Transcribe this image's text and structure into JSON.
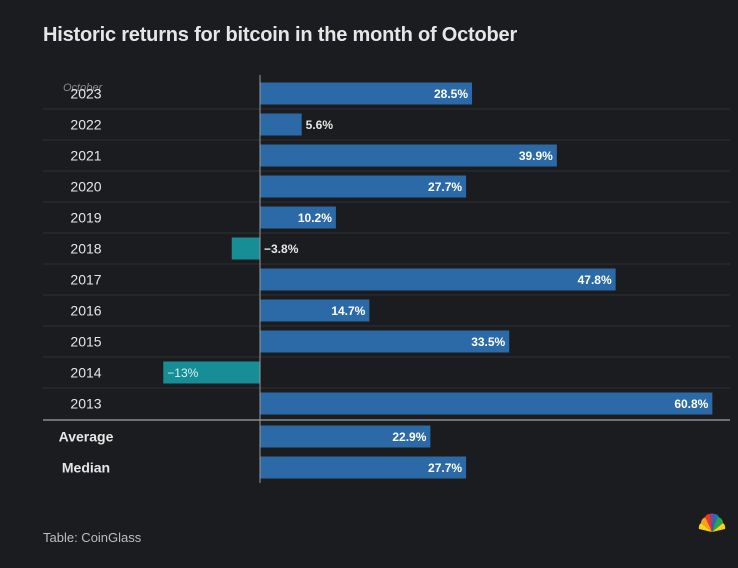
{
  "title": "Historic returns for bitcoin in the month of October",
  "source": "Table: CoinGlass",
  "logo": {
    "name": "nbc-peacock-icon"
  },
  "colors": {
    "positive": "#2b6aa6",
    "negative": "#178e96",
    "background": "#1b1c1f",
    "separator": "#2e2f33",
    "axis": "#9a9a9a",
    "text": "#e6e6e6"
  },
  "chart_data": {
    "type": "bar",
    "orientation": "horizontal",
    "title": "Historic returns for bitcoin in the month of October",
    "row_header": "October",
    "categories": [
      "2023",
      "2022",
      "2021",
      "2020",
      "2019",
      "2018",
      "2017",
      "2016",
      "2015",
      "2014",
      "2013"
    ],
    "values": [
      28.5,
      5.6,
      39.9,
      27.7,
      10.2,
      -3.8,
      47.8,
      14.7,
      33.5,
      -13,
      60.8
    ],
    "labels": [
      "28.5%",
      "5.6%",
      "39.9%",
      "27.7%",
      "10.2%",
      "−3.8%",
      "47.8%",
      "14.7%",
      "33.5%",
      "−13%",
      "60.8%"
    ],
    "summary": [
      {
        "name": "Average",
        "value": 22.9,
        "label": "22.9%"
      },
      {
        "name": "Median",
        "value": 27.7,
        "label": "27.7%"
      }
    ],
    "unit": "%",
    "xlim": [
      -13.2,
      61.5
    ]
  }
}
